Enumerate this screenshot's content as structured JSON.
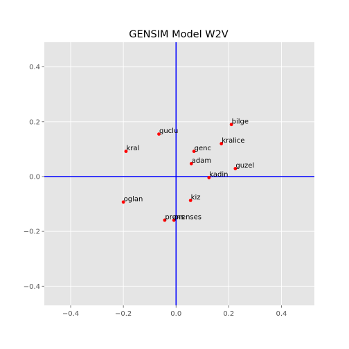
{
  "chart_data": {
    "type": "scatter",
    "title": "GENSIM Model W2V",
    "xlabel": "",
    "ylabel": "",
    "xlim": [
      -0.5,
      0.525
    ],
    "ylim": [
      -0.47,
      0.49
    ],
    "xticks": [
      -0.4,
      -0.2,
      0.0,
      0.2,
      0.4
    ],
    "yticks": [
      -0.4,
      -0.2,
      0.0,
      0.2,
      0.4
    ],
    "xtick_labels": [
      "−0.4",
      "−0.2",
      "0.0",
      "0.2",
      "0.4"
    ],
    "ytick_labels": [
      "−0.4",
      "−0.2",
      "0.0",
      "0.2",
      "0.4"
    ],
    "grid": true,
    "reference_lines": {
      "x": 0,
      "y": 0,
      "color": "#0000ff"
    },
    "colors": {
      "background": "#e5e5e5",
      "grid": "#ffffff",
      "point": "#ff0000",
      "axes_lines": "#0000ff"
    },
    "points": [
      {
        "label": "bilge",
        "x": 0.21,
        "y": 0.19
      },
      {
        "label": "guclu",
        "x": -0.065,
        "y": 0.155
      },
      {
        "label": "kralice",
        "x": 0.172,
        "y": 0.12
      },
      {
        "label": "kral",
        "x": -0.19,
        "y": 0.092
      },
      {
        "label": "genc",
        "x": 0.068,
        "y": 0.092
      },
      {
        "label": "adam",
        "x": 0.058,
        "y": 0.047
      },
      {
        "label": "guzel",
        "x": 0.225,
        "y": 0.029
      },
      {
        "label": "kadin",
        "x": 0.125,
        "y": -0.004
      },
      {
        "label": "kiz",
        "x": 0.055,
        "y": -0.087
      },
      {
        "label": "oglan",
        "x": -0.2,
        "y": -0.093
      },
      {
        "label": "prens",
        "x": -0.043,
        "y": -0.159
      },
      {
        "label": "prenses",
        "x": -0.008,
        "y": -0.159
      }
    ]
  }
}
